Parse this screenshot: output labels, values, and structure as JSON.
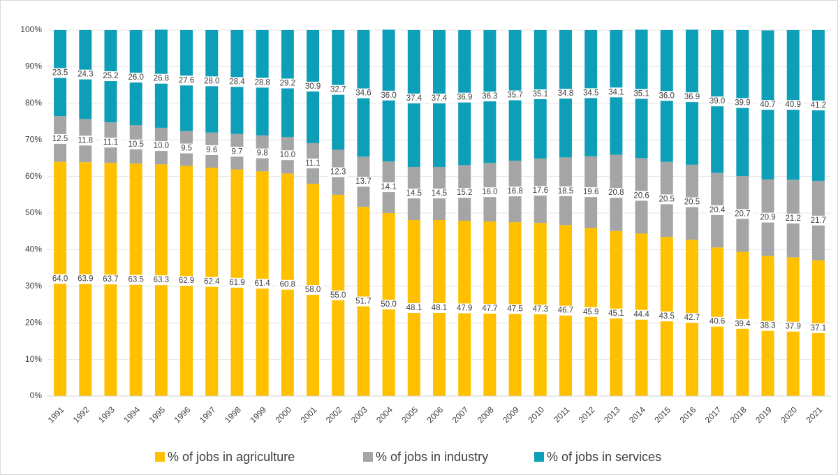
{
  "chart_data": {
    "type": "stacked_bar",
    "categories": [
      "1991",
      "1992",
      "1993",
      "1994",
      "1995",
      "1996",
      "1997",
      "1998",
      "1999",
      "2000",
      "2001",
      "2002",
      "2003",
      "2004",
      "2005",
      "2006",
      "2007",
      "2008",
      "2009",
      "2010",
      "2011",
      "2012",
      "2013",
      "2014",
      "2015",
      "2016",
      "2017",
      "2018",
      "2019",
      "2020",
      "2021"
    ],
    "series": [
      {
        "name": "% of jobs in agriculture",
        "color": "#FFC000",
        "values": [
          64.0,
          63.9,
          63.7,
          63.5,
          63.3,
          62.9,
          62.4,
          61.9,
          61.4,
          60.8,
          58.0,
          55.0,
          51.7,
          50.0,
          48.1,
          48.1,
          47.9,
          47.7,
          47.5,
          47.3,
          46.7,
          45.9,
          45.1,
          44.4,
          43.5,
          42.7,
          40.6,
          39.4,
          38.3,
          37.9,
          37.1
        ],
        "value_labels": [
          "64.0",
          "63.9",
          "63.7",
          "63.5",
          "63.3",
          "62.9",
          "62.4",
          "61.9",
          "61.4",
          "60.8",
          "58.0",
          "55.0",
          "51.7",
          "50.0",
          "48.1",
          "48.1",
          "47.9",
          "47.7",
          "47.5",
          "47.3",
          "46.7",
          "45.9",
          "45.1",
          "44.4",
          "43.5",
          "42.7",
          "40.6",
          "39.4",
          "38.3",
          "37.9",
          "37.1"
        ]
      },
      {
        "name": "% of jobs in industry",
        "color": "#A5A5A5",
        "values": [
          12.5,
          11.8,
          11.1,
          10.5,
          10.0,
          9.5,
          9.6,
          9.7,
          9.8,
          10.0,
          11.1,
          12.3,
          13.7,
          14.1,
          14.5,
          14.5,
          15.2,
          16.0,
          16.8,
          17.6,
          18.5,
          19.6,
          20.8,
          20.6,
          20.5,
          20.5,
          20.4,
          20.7,
          20.9,
          21.2,
          21.7
        ],
        "value_labels": [
          "12.5",
          "11.8",
          "11.1",
          "10.5",
          "10.0",
          "9.5",
          "9.6",
          "9.7",
          "9.8",
          "10.0",
          "11.1",
          "12.3",
          "13.7",
          "14.1",
          "14.5",
          "14.5",
          "15.2",
          "16.0",
          "16.8",
          "17.6",
          "18.5",
          "19.6",
          "20.8",
          "20.6",
          "20.5",
          "20.5",
          "20.4",
          "20.7",
          "20.9",
          "21.2",
          "21.7"
        ]
      },
      {
        "name": "% of jobs in services",
        "color": "#0E9FB8",
        "values": [
          23.5,
          24.3,
          25.2,
          26.0,
          26.8,
          27.6,
          28.0,
          28.4,
          28.8,
          29.2,
          30.9,
          32.7,
          34.6,
          36.0,
          37.4,
          37.4,
          36.9,
          36.3,
          35.7,
          35.1,
          34.8,
          34.5,
          34.1,
          35.1,
          36.0,
          36.9,
          39.0,
          39.9,
          40.7,
          40.9,
          41.2
        ],
        "value_labels": [
          "23.5",
          "24.3",
          "25.2",
          "26.0",
          "26.8",
          "27.6",
          "28.0",
          "28.4",
          "28.8",
          "29.2",
          "30.9",
          "32.7",
          "34.6",
          "36.0",
          "37.4",
          "37.4",
          "36.9",
          "36.3",
          "35.7",
          "35.1",
          "34.8",
          "34.5",
          "34.1",
          "35.1",
          "36.0",
          "36.9",
          "39.0",
          "39.9",
          "40.7",
          "40.9",
          "41.2"
        ]
      }
    ],
    "ylim": [
      0,
      100
    ],
    "yticks": [
      {
        "value": 0,
        "label": "0%"
      },
      {
        "value": 10,
        "label": "10%"
      },
      {
        "value": 20,
        "label": "20%"
      },
      {
        "value": 30,
        "label": "30%"
      },
      {
        "value": 40,
        "label": "40%"
      },
      {
        "value": 50,
        "label": "50%"
      },
      {
        "value": 60,
        "label": "60%"
      },
      {
        "value": 70,
        "label": "70%"
      },
      {
        "value": 80,
        "label": "80%"
      },
      {
        "value": 90,
        "label": "90%"
      },
      {
        "value": 100,
        "label": "100%"
      }
    ],
    "grid": true,
    "legend": "bottom"
  }
}
